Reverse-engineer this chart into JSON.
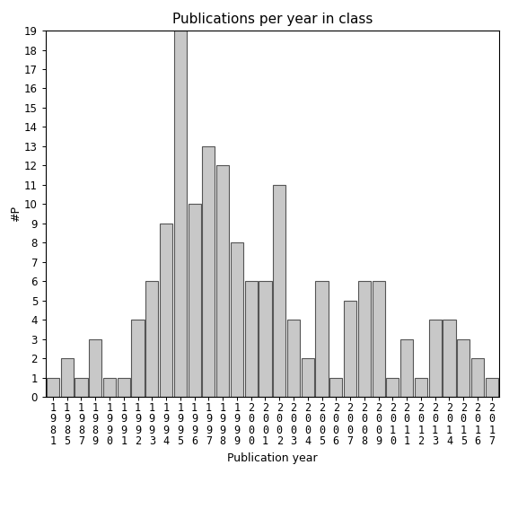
{
  "years": [
    "1981",
    "1985",
    "1987",
    "1989",
    "1990",
    "1991",
    "1992",
    "1993",
    "1994",
    "1995",
    "1996",
    "1997",
    "1998",
    "1999",
    "2000",
    "2001",
    "2002",
    "2003",
    "2004",
    "2005",
    "2006",
    "2007",
    "2008",
    "2009",
    "2010",
    "2011",
    "2012",
    "2013",
    "2014",
    "2015",
    "2016",
    "2017"
  ],
  "values": [
    1,
    2,
    1,
    3,
    1,
    1,
    4,
    6,
    9,
    19,
    10,
    13,
    12,
    8,
    6,
    6,
    11,
    4,
    2,
    6,
    1,
    5,
    6,
    6,
    1,
    3,
    1,
    4,
    4,
    3,
    2,
    1
  ],
  "title": "Publications per year in class",
  "xlabel": "Publication year",
  "ylabel": "#P",
  "bar_color": "#c8c8c8",
  "bar_edge_color": "#555555",
  "ylim": [
    0,
    19
  ],
  "yticks": [
    0,
    1,
    2,
    3,
    4,
    5,
    6,
    7,
    8,
    9,
    10,
    11,
    12,
    13,
    14,
    15,
    16,
    17,
    18,
    19
  ],
  "bg_color": "#ffffff",
  "title_fontsize": 11,
  "label_fontsize": 9,
  "tick_fontsize": 8.5
}
